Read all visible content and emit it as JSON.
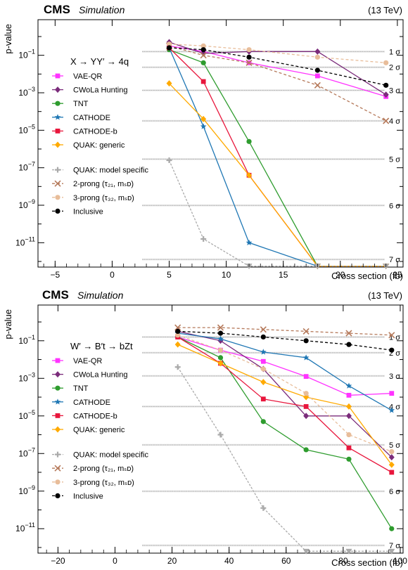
{
  "chart_data": [
    {
      "type": "line",
      "yscale": "log",
      "experiment": "CMS",
      "subtitle": "Simulation",
      "energy": "(13 TeV)",
      "title": "X → YY′ → 4q",
      "xlabel": "Cross section (fb)",
      "ylabel": "p-value",
      "xlim": [
        -6.5,
        25.5
      ],
      "ylim_exp": [
        -12.3,
        0.9
      ],
      "xticks": [
        -5,
        0,
        5,
        10,
        15,
        20,
        25
      ],
      "sigma_lines": [
        {
          "label": "1 σ",
          "exp": -0.8
        },
        {
          "label": "2 σ",
          "exp": -1.64
        },
        {
          "label": "3 σ",
          "exp": -2.87
        },
        {
          "label": "4 σ",
          "exp": -4.5
        },
        {
          "label": "5 σ",
          "exp": -6.54
        },
        {
          "label": "6 σ",
          "exp": -9.01
        },
        {
          "label": "7 σ",
          "exp": -11.89
        }
      ],
      "series": [
        {
          "name": "VAE-QR",
          "color": "#ff33ff",
          "marker": "square",
          "dash": "",
          "x": [
            5,
            8,
            12,
            18,
            24
          ],
          "y_exp": [
            -0.5,
            -0.8,
            -1.4,
            -2.1,
            -3.2
          ]
        },
        {
          "name": "CWoLa Hunting",
          "color": "#7b2c7b",
          "marker": "diamond",
          "dash": "",
          "x": [
            5,
            8,
            12,
            18,
            24
          ],
          "y_exp": [
            -0.3,
            -0.9,
            -0.8,
            -0.8,
            -3.1
          ]
        },
        {
          "name": "TNT",
          "color": "#2e9c2e",
          "marker": "circle",
          "dash": "",
          "x": [
            5,
            8,
            12,
            18,
            24
          ],
          "y_exp": [
            -0.7,
            -1.4,
            -5.6,
            -12.25,
            -12.25
          ]
        },
        {
          "name": "CATHODE",
          "color": "#1f77b4",
          "marker": "star",
          "dash": "",
          "x": [
            5,
            8,
            12,
            18,
            24
          ],
          "y_exp": [
            -0.6,
            -4.8,
            -11.0,
            -12.25,
            -12.25
          ]
        },
        {
          "name": "CATHODE-b",
          "color": "#e8163c",
          "marker": "square",
          "dash": "",
          "x": [
            5,
            8,
            12,
            18,
            24
          ],
          "y_exp": [
            -0.6,
            -2.4,
            -7.4,
            -12.25,
            -12.25
          ]
        },
        {
          "name": "QUAK: generic",
          "color": "#ffaa00",
          "marker": "diamond",
          "dash": "",
          "x": [
            5,
            8,
            12,
            18,
            24
          ],
          "y_exp": [
            -2.5,
            -4.4,
            -7.4,
            -12.25,
            -12.25
          ]
        },
        {
          "name": "QUAK: model specific",
          "color": "#aaaaaa",
          "marker": "cross",
          "dash": "3,2",
          "x": [
            5,
            8,
            12,
            18,
            24
          ],
          "y_exp": [
            -6.6,
            -10.8,
            -12.25,
            -12.25,
            -12.25
          ]
        },
        {
          "name": "2-prong (τ₂₁, mₛᴅ)",
          "color": "#b5795a",
          "marker": "x",
          "dash": "4,3",
          "x": [
            5,
            8,
            12,
            18,
            24
          ],
          "y_exp": [
            -0.5,
            -1.0,
            -1.4,
            -2.6,
            -4.5
          ]
        },
        {
          "name": "3-prong (τ₃₂, mₛᴅ)",
          "color": "#e8bd9a",
          "marker": "circle",
          "dash": "4,3",
          "x": [
            5,
            8,
            12,
            18,
            24
          ],
          "y_exp": [
            -0.4,
            -0.5,
            -0.7,
            -1.1,
            -1.4
          ]
        },
        {
          "name": "Inclusive",
          "color": "#000000",
          "marker": "circle",
          "dash": "4,3",
          "x": [
            5,
            8,
            12,
            18,
            24
          ],
          "y_exp": [
            -0.6,
            -0.7,
            -1.1,
            -1.8,
            -2.6
          ]
        }
      ]
    },
    {
      "type": "line",
      "yscale": "log",
      "experiment": "CMS",
      "subtitle": "Simulation",
      "energy": "(13 TeV)",
      "title": "W′ → B′t → bZt",
      "xlabel": "Cross section (fb)",
      "ylabel": "p-value",
      "xlim": [
        -27,
        101
      ],
      "ylim_exp": [
        -12.3,
        0.9
      ],
      "xticks": [
        -20,
        0,
        20,
        40,
        60,
        80,
        100
      ],
      "sigma_lines": [
        {
          "label": "1 σ",
          "exp": -0.8
        },
        {
          "label": "2 σ",
          "exp": -1.64
        },
        {
          "label": "3 σ",
          "exp": -2.87
        },
        {
          "label": "4 σ",
          "exp": -4.5
        },
        {
          "label": "5 σ",
          "exp": -6.54
        },
        {
          "label": "6 σ",
          "exp": -9.01
        },
        {
          "label": "7 σ",
          "exp": -11.89
        }
      ],
      "series": [
        {
          "name": "VAE-QR",
          "color": "#ff33ff",
          "marker": "square",
          "dash": "",
          "x": [
            22,
            37,
            52,
            67,
            82,
            97
          ],
          "y_exp": [
            -0.8,
            -1.5,
            -2.1,
            -2.9,
            -3.9,
            -3.8
          ]
        },
        {
          "name": "CWoLa Hunting",
          "color": "#7b2c7b",
          "marker": "diamond",
          "dash": "",
          "x": [
            22,
            37,
            52,
            67,
            82,
            97
          ],
          "y_exp": [
            -0.5,
            -1.0,
            -2.5,
            -5.0,
            -5.0,
            -7.2
          ]
        },
        {
          "name": "TNT",
          "color": "#2e9c2e",
          "marker": "circle",
          "dash": "",
          "x": [
            22,
            37,
            52,
            67,
            82,
            97
          ],
          "y_exp": [
            -0.8,
            -1.9,
            -5.3,
            -6.8,
            -7.3,
            -11.0
          ]
        },
        {
          "name": "CATHODE",
          "color": "#1f77b4",
          "marker": "star",
          "dash": "",
          "x": [
            22,
            37,
            52,
            67,
            82,
            97
          ],
          "y_exp": [
            -0.6,
            -0.9,
            -1.6,
            -1.9,
            -3.4,
            -4.7
          ]
        },
        {
          "name": "CATHODE-b",
          "color": "#e8163c",
          "marker": "square",
          "dash": "",
          "x": [
            22,
            37,
            52,
            67,
            82,
            97
          ],
          "y_exp": [
            -0.8,
            -2.2,
            -4.1,
            -4.5,
            -6.7,
            -8.0
          ]
        },
        {
          "name": "QUAK: generic",
          "color": "#ffaa00",
          "marker": "diamond",
          "dash": "",
          "x": [
            22,
            37,
            52,
            67,
            82,
            97
          ],
          "y_exp": [
            -1.2,
            -2.2,
            -3.2,
            -4.0,
            -4.5,
            -7.6
          ]
        },
        {
          "name": "QUAK: model specific",
          "color": "#aaaaaa",
          "marker": "cross",
          "dash": "3,2",
          "x": [
            22,
            37,
            52,
            67,
            82,
            97
          ],
          "y_exp": [
            -2.4,
            -6.0,
            -9.9,
            -12.2,
            -12.2,
            -12.2
          ]
        },
        {
          "name": "2-prong (τ₂₁, mₛᴅ)",
          "color": "#b5795a",
          "marker": "x",
          "dash": "4,3",
          "x": [
            22,
            37,
            52,
            67,
            82,
            97
          ],
          "y_exp": [
            -0.3,
            -0.3,
            -0.4,
            -0.5,
            -0.6,
            -0.7
          ]
        },
        {
          "name": "3-prong (τ₃₂, mₛᴅ)",
          "color": "#e8bd9a",
          "marker": "circle",
          "dash": "4,3",
          "x": [
            22,
            37,
            52,
            67,
            82,
            97
          ],
          "y_exp": [
            -0.7,
            -1.5,
            -2.5,
            -3.8,
            -6.0,
            -6.9
          ]
        },
        {
          "name": "Inclusive",
          "color": "#000000",
          "marker": "circle",
          "dash": "4,3",
          "x": [
            22,
            37,
            52,
            67,
            82,
            97
          ],
          "y_exp": [
            -0.5,
            -0.6,
            -0.8,
            -1.0,
            -1.2,
            -1.5
          ]
        }
      ]
    }
  ]
}
